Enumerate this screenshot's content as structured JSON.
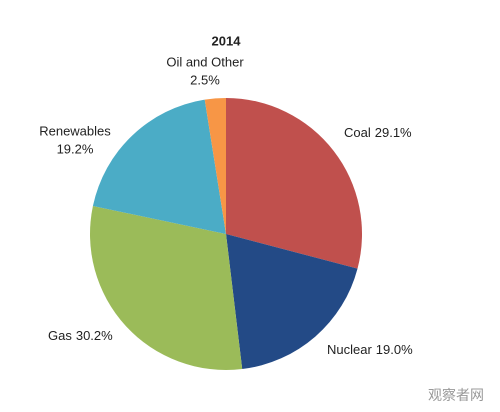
{
  "chart_data": {
    "type": "pie",
    "title": "2014",
    "categories": [
      "Coal",
      "Nuclear",
      "Gas",
      "Renewables",
      "Oil and Other"
    ],
    "values": [
      29.1,
      19.0,
      30.2,
      19.2,
      2.5
    ],
    "value_labels": [
      "29.1%",
      "19.0%",
      "30.2%",
      "19.2%",
      "2.5%"
    ],
    "colors": [
      "#c0504d",
      "#234a86",
      "#9bbb59",
      "#4bacc6",
      "#f79646"
    ]
  },
  "watermark": "观察者网"
}
